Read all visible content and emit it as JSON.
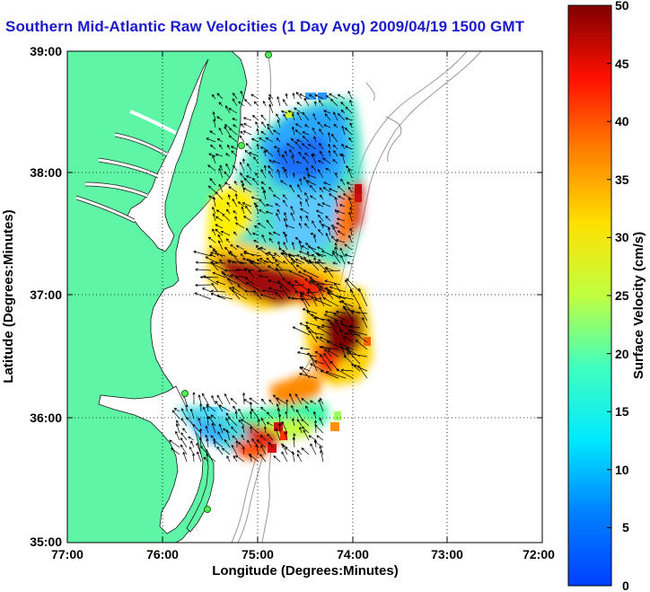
{
  "title": "Southern Mid-Atlantic Raw Velocities (1 Day Avg) 2009/04/19 1500 GMT",
  "map": {
    "xlabel": "Longitude (Degrees:Minutes)",
    "ylabel": "Latitude (Degrees:Minutes)",
    "xticks": [
      "77:00",
      "76:00",
      "75:00",
      "74:00",
      "73:00",
      "72:00"
    ],
    "yticks": [
      "39:00",
      "38:00",
      "37:00",
      "36:00",
      "35:00"
    ],
    "grid": "dotted",
    "land_color": "#5ef5a6",
    "ocean_color": "#ffffff"
  },
  "colorbar": {
    "label": "Surface Velocity (cm/s)",
    "ticks": [
      "50",
      "45",
      "40",
      "35",
      "30",
      "25",
      "20",
      "15",
      "10",
      "5",
      "0"
    ],
    "min": 0,
    "max": 50,
    "colormap": "jet"
  }
}
